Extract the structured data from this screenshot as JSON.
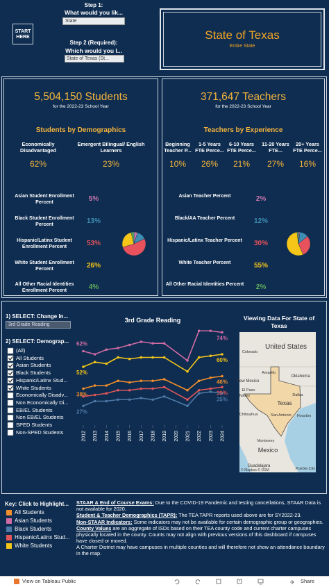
{
  "header": {
    "start_button": "START HERE",
    "step1_label": "Step 1:",
    "step1_question": "What would you lik...",
    "step1_selection": "State",
    "step2_label": "Step 2 (Required):",
    "step2_question": "Which would you l...",
    "step2_selection": "State of Texas (St...",
    "location_title": "State of Texas",
    "location_subtitle": "Entire State"
  },
  "students": {
    "total": "5,504,150 Students",
    "subtitle": "for the 2022-23 School Year",
    "section_title": "Students by Demographics",
    "metrics": [
      {
        "label": "Economically Disadvantaged",
        "value": "62%"
      },
      {
        "label": "Emergent Bilingual/ English Learners",
        "value": "23%"
      }
    ],
    "demographics": {
      "type": "pie",
      "categories": [
        "Asian Student Enrollment Percent",
        "Black Student Enrollment Percent",
        "Hispanic/Latinx Student Enrollment Percent",
        "White Student Enrollment Percent",
        "All Other Racial Identities Enrollment Percent"
      ],
      "values": [
        5,
        13,
        53,
        26,
        4
      ],
      "value_labels": [
        "5%",
        "13%",
        "53%",
        "26%",
        "4%"
      ],
      "colors": [
        "#c877aa",
        "#3e8db3",
        "#e8525c",
        "#f5c518",
        "#5eae5a"
      ]
    }
  },
  "teachers": {
    "total": "371,647 Teachers",
    "subtitle": "for the 2022-23 School Year",
    "section_title": "Teachers by Experience",
    "metrics": [
      {
        "label": "Beginning Teacher P...",
        "value": "10%"
      },
      {
        "label": "1-5 Years FTE Perce...",
        "value": "26%"
      },
      {
        "label": "6-10 Years FTE Perce...",
        "value": "21%"
      },
      {
        "label": "11-20 Years FTE...",
        "value": "27%"
      },
      {
        "label": "20+ Years FTE Perce...",
        "value": "16%"
      }
    ],
    "demographics": {
      "type": "pie",
      "categories": [
        "Asian Teacher Percent",
        "Black/AA Teacher Percent",
        "Hispanic/Latinx Teacher Percent",
        "White Teacher Percent",
        "All Other Racial Identities Percent"
      ],
      "values": [
        2,
        12,
        30,
        55,
        2
      ],
      "value_labels": [
        "2%",
        "12%",
        "30%",
        "55%",
        "2%"
      ],
      "colors": [
        "#c877aa",
        "#3e8db3",
        "#e8525c",
        "#f5c518",
        "#5eae5a"
      ]
    }
  },
  "explorer": {
    "selector1_label": "1) SELECT: Change In...",
    "selector1_value": "3rd Grade Reading",
    "selector2_label": "2) SELECT: Demograp...",
    "options": [
      {
        "label": "(All)",
        "checked": false
      },
      {
        "label": "All Students",
        "checked": true
      },
      {
        "label": "Asian Students",
        "checked": true
      },
      {
        "label": "Black Students",
        "checked": true
      },
      {
        "label": "Hispanic/Latinx Stud...",
        "checked": true
      },
      {
        "label": "White Students",
        "checked": true
      },
      {
        "label": "Economically Disadv...",
        "checked": false
      },
      {
        "label": "Non Economically Di...",
        "checked": false
      },
      {
        "label": "EB/EL Students",
        "checked": false
      },
      {
        "label": "Non EB/EL Students",
        "checked": false
      },
      {
        "label": "SPED Students",
        "checked": false
      },
      {
        "label": "Non-SPED Students",
        "checked": false
      }
    ]
  },
  "chart_data": {
    "type": "line",
    "title": "3rd Grade Reading",
    "x": [
      2012,
      2013,
      2014,
      2015,
      2016,
      2017,
      2018,
      2019,
      2021,
      2022,
      2023,
      2024
    ],
    "xlim": [
      2012,
      2024
    ],
    "xticks": [
      2012,
      2013,
      2014,
      2015,
      2016,
      2017,
      2018,
      2019,
      2020,
      2021,
      2022,
      2023,
      2024
    ],
    "ylim": [
      20,
      80
    ],
    "series": [
      {
        "name": "All Students",
        "color": "#f28e2b",
        "values": [
          38,
          40,
          40,
          43,
          42,
          43,
          43,
          44,
          37,
          43,
          45,
          46
        ],
        "value_labels": [
          "38%",
          null,
          null,
          null,
          null,
          null,
          null,
          null,
          null,
          null,
          null,
          "46%"
        ]
      },
      {
        "name": "Asian Students",
        "color": "#d16ba5",
        "values": [
          62,
          60,
          63,
          64,
          66,
          68,
          67,
          67,
          56,
          75,
          75,
          74
        ],
        "value_labels": [
          "62%",
          null,
          null,
          null,
          null,
          null,
          null,
          null,
          null,
          null,
          null,
          "74%"
        ]
      },
      {
        "name": "Black Students",
        "color": "#4e79a7",
        "values": [
          27,
          30,
          30,
          31,
          31,
          32,
          31,
          33,
          27,
          35,
          36,
          35
        ],
        "value_labels": [
          "27%",
          null,
          null,
          null,
          null,
          null,
          null,
          null,
          null,
          null,
          null,
          "35%"
        ]
      },
      {
        "name": "Hispanic/Latinx Stud...",
        "color": "#e15759",
        "values": [
          33,
          34,
          35,
          37,
          37,
          38,
          38,
          39,
          31,
          37,
          38,
          39
        ],
        "value_labels": [
          null,
          null,
          null,
          null,
          null,
          null,
          null,
          null,
          null,
          null,
          null,
          "39%"
        ]
      },
      {
        "name": "White Students",
        "color": "#f5c518",
        "values": [
          52,
          55,
          54,
          58,
          57,
          58,
          58,
          58,
          49,
          58,
          59,
          60
        ],
        "value_labels": [
          "52%",
          null,
          null,
          null,
          null,
          null,
          null,
          null,
          null,
          null,
          null,
          "60%"
        ]
      }
    ]
  },
  "map": {
    "title": "Viewing Data For State of Texas",
    "labels": [
      "United States",
      "Colorado",
      "Oklahoma",
      "Amarillo",
      "New Mexico",
      "Dallas",
      "El Paso",
      "Juárez",
      "Texas",
      "San Antonio",
      "Houston",
      "Chihuahua",
      "Monterrey",
      "Mexico",
      "Guadalajara",
      "Puebla City"
    ],
    "attribution": "© Mapbox © OSM"
  },
  "key": {
    "title": "Key: Click to Highlight..."
  },
  "notes": [
    {
      "heading": "STAAR & End of Course Exams:",
      "text": " Due to the COVID-19 Pandemic and testing cancellations, STAAR Data is not available for 2020."
    },
    {
      "heading": "Student & Teacher Demographics (TAPR):",
      "text": "  The TEA TAPR reports used above are for SY2022-23."
    },
    {
      "heading": "Non-STAAR Indicators:",
      "text": " Some indicators may not be available for certain demographic group or geographies."
    },
    {
      "heading": "County Values",
      "text": " are an aggregate of ISDs based on their TEA county code and current charter campuses physically located in the county. Counts may not align with previous versions of this dashboard if campuses have closed or moved."
    },
    {
      "text": "A Charter District may have campuses in multiple counties and will therefore not show an attendance boundary in the map."
    }
  ],
  "footer": {
    "link": "View on Tableau Public",
    "share": "Share"
  }
}
